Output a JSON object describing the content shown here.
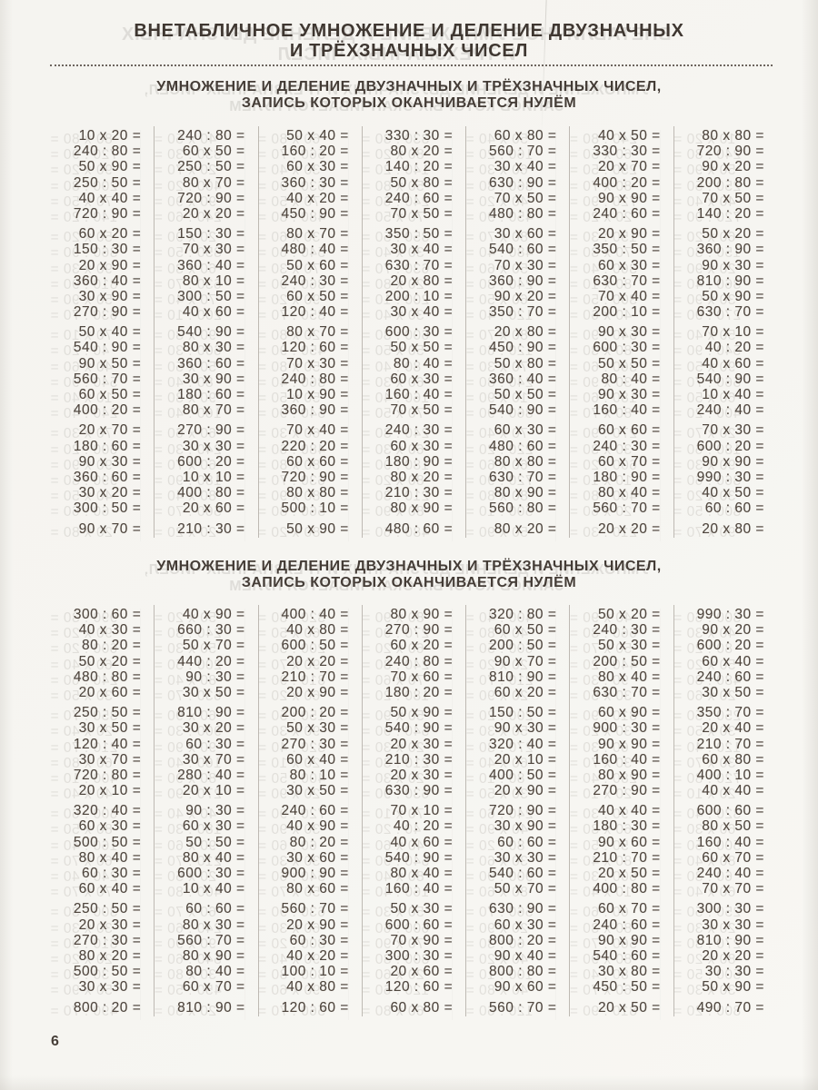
{
  "title": {
    "line1": "ВНЕТАБЛИЧНОЕ УМНОЖЕНИЕ И ДЕЛЕНИЕ ДВУЗНАЧНЫХ",
    "line2": "И ТРЁХЗНАЧНЫХ ЧИСЕЛ"
  },
  "page_number": "6",
  "colors": {
    "ink": "#3f3731",
    "exercise_ink": "#50473f",
    "page_background": "#f6f5f1",
    "separator": "#70675e"
  },
  "sections": [
    {
      "heading": {
        "line1": "УМНОЖЕНИЕ И ДЕЛЕНИЕ ДВУЗНАЧНЫХ И ТРЁХЗНАЧНЫХ ЧИСЕЛ,",
        "line2": "ЗАПИСЬ КОТОРЫХ ОКАНЧИВАЕТСЯ НУЛЁМ"
      },
      "rows": [
        [
          "10 x 20 =",
          "240 : 80 =",
          "50 x 40 =",
          "330 : 30 =",
          "60 x 80 =",
          "40 x 50 =",
          "80 x 80 ="
        ],
        [
          "240 : 80 =",
          "60 x 50 =",
          "160 : 20 =",
          "80 x 20 =",
          "560 : 70 =",
          "330 : 30 =",
          "720 : 90 ="
        ],
        [
          "50 x 90 =",
          "250 : 50 =",
          "60 x 30 =",
          "140 : 20 =",
          "30 x 40 =",
          "20 x 70 =",
          "90 x 20 ="
        ],
        [
          "250 : 50 =",
          "80 x 70 =",
          "360 : 30 =",
          "50 x 80 =",
          "630 : 90 =",
          "400 : 20 =",
          "200 : 80 ="
        ],
        [
          "40 x 40 =",
          "720 : 90 =",
          "40 x 20 =",
          "240 : 60 =",
          "70 x 50 =",
          "90 x 90 =",
          "70 x 50 ="
        ],
        [
          "720 : 90 =",
          "20 x 20 =",
          "450 : 90 =",
          "70 x 50 =",
          "480 : 80 =",
          "240 : 60 =",
          "140 : 20 ="
        ],
        [
          "60 x 20 =",
          "150 : 30 =",
          "80 x 70 =",
          "350 : 50 =",
          "30 x 60 =",
          "20 x 90 =",
          "50 x 20 ="
        ],
        [
          "150 : 30 =",
          "70 x 30 =",
          "480 : 40 =",
          "30 x 40 =",
          "540 : 60 =",
          "350 : 50 =",
          "360 : 90 ="
        ],
        [
          "20 x 90 =",
          "360 : 40 =",
          "50 x 60 =",
          "630 : 70 =",
          "70 x 30 =",
          "60 x 30 =",
          "90 x 30 ="
        ],
        [
          "360 : 40 =",
          "80 x 10 =",
          "240 : 30 =",
          "20 x 80 =",
          "360 : 90 =",
          "630 : 70 =",
          "810 : 90 ="
        ],
        [
          "30 x 90 =",
          "300 : 50 =",
          "60 x 50 =",
          "200 : 10 =",
          "90 x 20 =",
          "70 x 40 =",
          "50 x 90 ="
        ],
        [
          "270 : 90 =",
          "40 x 60 =",
          "120 : 40 =",
          "30 x 40 =",
          "350 : 70 =",
          "200 : 10 =",
          "630 : 70 ="
        ],
        [
          "50 x 40 =",
          "540 : 90 =",
          "80 x 70 =",
          "600 : 30 =",
          "20 x 80 =",
          "90 x 30 =",
          "70 x 10 ="
        ],
        [
          "540 : 90 =",
          "80 x 30 =",
          "120 : 60 =",
          "50 x 50 =",
          "450 : 90 =",
          "600 : 30 =",
          "40 : 20 ="
        ],
        [
          "90 x 50 =",
          "360 : 60 =",
          "70 x 30 =",
          "80 : 40 =",
          "50 x 80 =",
          "50 x 50 =",
          "40 x 60 ="
        ],
        [
          "560 : 70 =",
          "30 x 90 =",
          "240 : 80 =",
          "60 x 30 =",
          "360 : 40 =",
          "80 : 40 =",
          "540 : 90 ="
        ],
        [
          "60 x 50 =",
          "180 : 60 =",
          "10 x 90 =",
          "160 : 40 =",
          "50 x 50 =",
          "90 x 30 =",
          "10 x 40 ="
        ],
        [
          "400 : 20 =",
          "80 x 70 =",
          "360 : 90 =",
          "70 x 50 =",
          "540 : 90 =",
          "160 : 40 =",
          "240 : 40 ="
        ],
        [
          "20 x 70 =",
          "270 : 90 =",
          "70 x 40 =",
          "240 : 30 =",
          "60 x 30 =",
          "60 x 60 =",
          "70 x 30 ="
        ],
        [
          "180 : 60 =",
          "30 x 30 =",
          "220 : 20 =",
          "60 x 30 =",
          "480 : 60 =",
          "240 : 30 =",
          "600 : 20 ="
        ],
        [
          "90 x 30 =",
          "600 : 20 =",
          "60 x 60 =",
          "180 : 90 =",
          "80 x 80 =",
          "60 x 70 =",
          "90 x 90 ="
        ],
        [
          "360 : 60 =",
          "10 x 10 =",
          "720 : 90 =",
          "80 x 20 =",
          "630 : 70 =",
          "180 : 90 =",
          "990 : 30 ="
        ],
        [
          "30 x 20 =",
          "400 : 80 =",
          "80 x 80 =",
          "210 : 30 =",
          "80 x 90 =",
          "80 x 40 =",
          "40 x 50 ="
        ],
        [
          "300 : 50 =",
          "20 x 60 =",
          "500 : 10 =",
          "80 x 90 =",
          "560 : 80 =",
          "560 : 70 =",
          "60 : 60 ="
        ],
        [
          "90 x 70 =",
          "210 : 30 =",
          "50 x 90 =",
          "480 : 60 =",
          "80 x 20 =",
          "20 x 20 =",
          "20 x 80 ="
        ]
      ]
    },
    {
      "heading": {
        "line1": "УМНОЖЕНИЕ И ДЕЛЕНИЕ ДВУЗНАЧНЫХ И ТРЁХЗНАЧНЫХ ЧИСЕЛ,",
        "line2": "ЗАПИСЬ КОТОРЫХ ОКАНЧИВАЕТСЯ НУЛЁМ"
      },
      "rows": [
        [
          "300 : 60 =",
          "40 x 90 =",
          "400 : 40 =",
          "80 x 90 =",
          "320 : 80 =",
          "50 x 20 =",
          "990 : 30 ="
        ],
        [
          "40 x 30 =",
          "660 : 30 =",
          "40 x 80 =",
          "270 : 90 =",
          "60 x 50 =",
          "240 : 30 =",
          "90 x 20 ="
        ],
        [
          "80 : 20 =",
          "50 x 70 =",
          "600 : 50 =",
          "60 x 20 =",
          "200 : 50 =",
          "50 x 30 =",
          "600 : 20 ="
        ],
        [
          "50 x 20 =",
          "440 : 20 =",
          "20 x 20 =",
          "240 : 80 =",
          "90 x 70 =",
          "200 : 50 =",
          "60 x 40 ="
        ],
        [
          "480 : 80 =",
          "90 : 30 =",
          "210 : 70 =",
          "70 x 60 =",
          "810 : 90 =",
          "80 x 40 =",
          "240 : 60 ="
        ],
        [
          "20 x 60 =",
          "30 x 50 =",
          "20 x 90 =",
          "180 : 20 =",
          "60 x 20 =",
          "630 : 70 =",
          "30 x 50 ="
        ],
        [
          "250 : 50 =",
          "810 : 90 =",
          "200 : 20 =",
          "50 x 90 =",
          "150 : 50 =",
          "60 x 90 =",
          "350 : 70 ="
        ],
        [
          "30 x 50 =",
          "30 x 20 =",
          "50 x 30 =",
          "540 : 90 =",
          "90 x 30 =",
          "900 : 30 =",
          "20 x 40 ="
        ],
        [
          "120 : 40 =",
          "60 : 30 =",
          "270 : 30 =",
          "20 x 30 =",
          "320 : 40 =",
          "90 x 90 =",
          "210 : 70 ="
        ],
        [
          "30 x 70 =",
          "30 x 70 =",
          "60 x 40 =",
          "210 : 30 =",
          "20 x 10 =",
          "160 : 40 =",
          "60 x 80 ="
        ],
        [
          "720 : 80 =",
          "280 : 40 =",
          "80 : 10 =",
          "20 x 30 =",
          "400 : 50 =",
          "80 x 90 =",
          "400 : 10 ="
        ],
        [
          "20 x 10 =",
          "20 x 10 =",
          "30 x 50 =",
          "630 : 90 =",
          "20 x 90 =",
          "270 : 90 =",
          "40 x 40 ="
        ],
        [
          "320 : 40 =",
          "90 : 30 =",
          "240 : 60 =",
          "70 x 10 =",
          "720 : 90 =",
          "40 x 40 =",
          "600 : 60 ="
        ],
        [
          "60 x 30 =",
          "60 x 30 =",
          "40 x 90 =",
          "40 : 20 =",
          "30 x 90 =",
          "180 : 30 =",
          "80 x 50 ="
        ],
        [
          "500 : 50 =",
          "50 : 50 =",
          "80 : 20 =",
          "40 x 60 =",
          "60 : 60 =",
          "90 x 60 =",
          "160 : 40 ="
        ],
        [
          "80 x 40 =",
          "80 x 40 =",
          "30 x 60 =",
          "540 : 90 =",
          "30 x 30 =",
          "210 : 70 =",
          "60 x 70 ="
        ],
        [
          "60 : 30 =",
          "600 : 30 =",
          "900 : 90 =",
          "80 x 40 =",
          "540 : 60 =",
          "20 x 50 =",
          "240 : 40 ="
        ],
        [
          "60 x 40 =",
          "10 x 40 =",
          "80 x 60 =",
          "160 : 40 =",
          "50 x 70 =",
          "400 : 80 =",
          "70 x 70 ="
        ],
        [
          "250 : 50 =",
          "60 : 60 =",
          "560 : 70 =",
          "50 x 30 =",
          "630 : 90 =",
          "60 x 70 =",
          "300 : 30 ="
        ],
        [
          "20 x 30 =",
          "80 x 30 =",
          "20 x 90 =",
          "600 : 60 =",
          "60 x 30 =",
          "240 : 60 =",
          "30 x 30 ="
        ],
        [
          "270 : 30 =",
          "560 : 70 =",
          "60 : 30 =",
          "70 x 90 =",
          "800 : 20 =",
          "90 x 90 =",
          "810 : 90 ="
        ],
        [
          "80 x 20 =",
          "80 x 90 =",
          "40 x 20 =",
          "300 : 30 =",
          "90 x 40 =",
          "540 : 60 =",
          "20 x 20 ="
        ],
        [
          "500 : 50 =",
          "80 : 40 =",
          "100 : 10 =",
          "20 x 60 =",
          "800 : 80 =",
          "30 x 80 =",
          "30 : 30 ="
        ],
        [
          "30 x 30 =",
          "60 x 70 =",
          "40 x 80 =",
          "120 : 60 =",
          "90 x 60 =",
          "450 : 50 =",
          "50 x 90 ="
        ],
        [
          "800 : 20 =",
          "810 : 90 =",
          "120 : 60 =",
          "60 x 80 =",
          "560 : 70 =",
          "20 x 50 =",
          "490 : 70 ="
        ]
      ]
    }
  ]
}
